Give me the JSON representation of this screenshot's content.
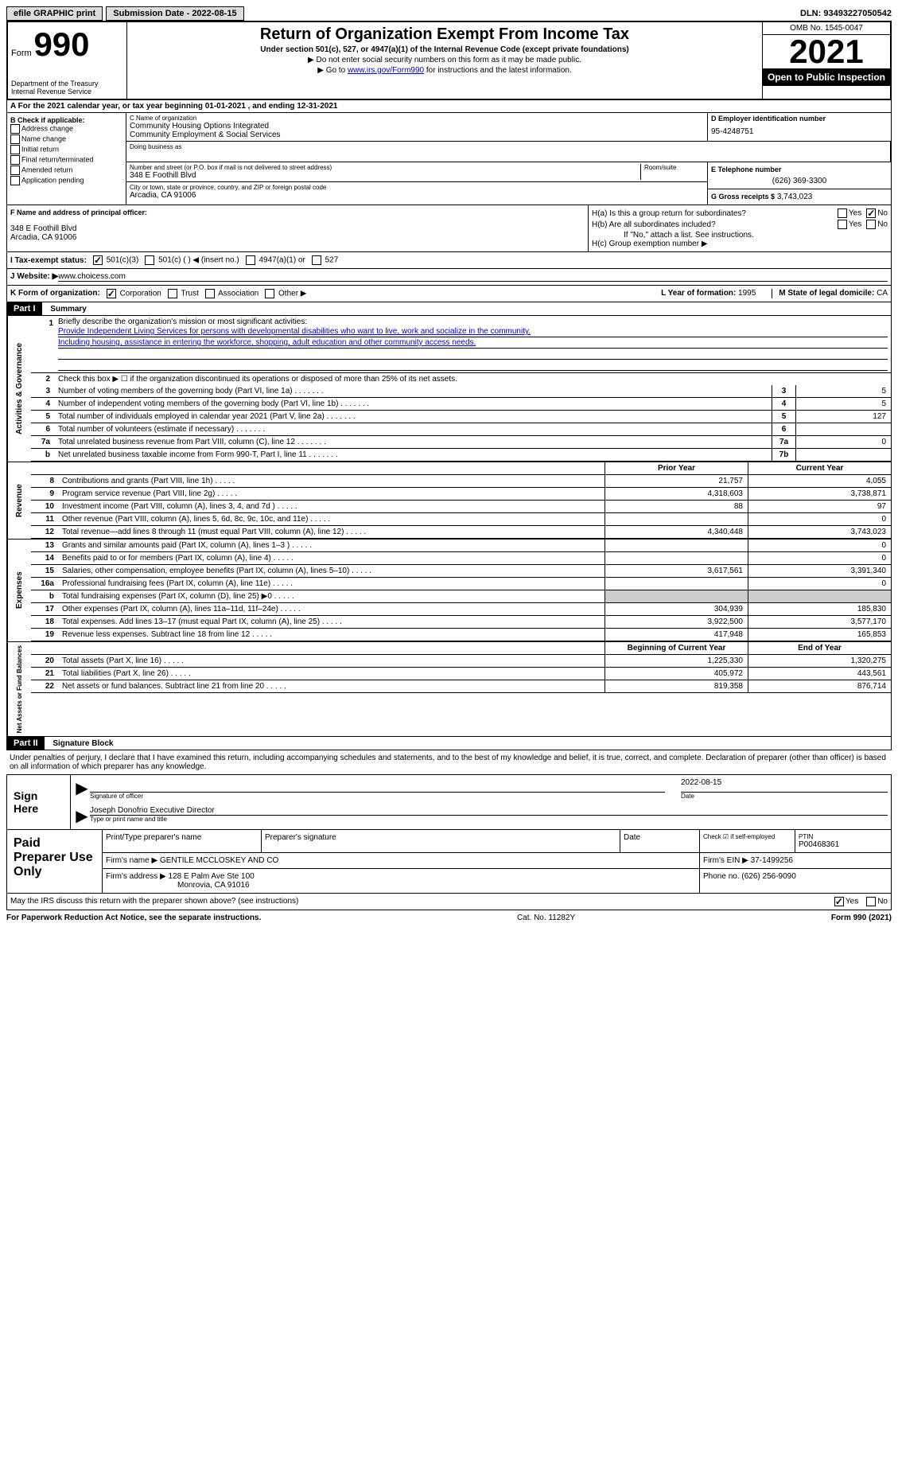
{
  "topbar": {
    "efile": "efile GRAPHIC print",
    "sub_label": "Submission Date - 2022-08-15",
    "dln": "DLN: 93493227050542"
  },
  "header": {
    "form_word": "Form",
    "form_num": "990",
    "dept": "Department of the Treasury Internal Revenue Service",
    "title": "Return of Organization Exempt From Income Tax",
    "sub": "Under section 501(c), 527, or 4947(a)(1) of the Internal Revenue Code (except private foundations)",
    "note1": "▶ Do not enter social security numbers on this form as it may be made public.",
    "note2_pre": "▶ Go to ",
    "note2_link": "www.irs.gov/Form990",
    "note2_post": " for instructions and the latest information.",
    "omb": "OMB No. 1545-0047",
    "year": "2021",
    "inspect": "Open to Public Inspection"
  },
  "row_a": "A For the 2021 calendar year, or tax year beginning 01-01-2021    , and ending 12-31-2021",
  "col_b": {
    "title": "B Check if applicable:",
    "opts": [
      "Address change",
      "Name change",
      "Initial return",
      "Final return/terminated",
      "Amended return",
      "Application pending"
    ]
  },
  "col_c": {
    "name_label": "C Name of organization",
    "name1": "Community Housing Options Integrated",
    "name2": "Community Employment & Social Services",
    "dba_label": "Doing business as",
    "addr_label": "Number and street (or P.O. box if mail is not delivered to street address)",
    "room_label": "Room/suite",
    "addr": "348 E Foothill Blvd",
    "city_label": "City or town, state or province, country, and ZIP or foreign postal code",
    "city": "Arcadia, CA  91006"
  },
  "col_d": {
    "label": "D Employer identification number",
    "val": "95-4248751"
  },
  "col_e": {
    "phone_label": "E Telephone number",
    "phone": "(626) 369-3300",
    "gross_label": "G Gross receipts $",
    "gross": "3,743,023"
  },
  "col_f": {
    "label": "F Name and address of principal officer:",
    "addr1": "348 E Foothill Blvd",
    "addr2": "Arcadia, CA  91006"
  },
  "col_h": {
    "a": "H(a)  Is this a group return for subordinates?",
    "b": "H(b)  Are all subordinates included?",
    "b_note": "If \"No,\" attach a list. See instructions.",
    "c": "H(c)  Group exemption number ▶"
  },
  "row_i": {
    "label": "I  Tax-exempt status:",
    "o1": "501(c)(3)",
    "o2": "501(c) (   ) ◀ (insert no.)",
    "o3": "4947(a)(1) or",
    "o4": "527"
  },
  "row_j": {
    "label": "J  Website: ▶ ",
    "val": "www.choicess.com"
  },
  "row_k": {
    "label": "K Form of organization:",
    "o1": "Corporation",
    "o2": "Trust",
    "o3": "Association",
    "o4": "Other ▶",
    "year_label": "L Year of formation:",
    "year": "1995",
    "state_label": "M State of legal domicile:",
    "state": "CA"
  },
  "part1": {
    "hdr": "Part I",
    "title": "Summary"
  },
  "summary": {
    "mission_label": "Briefly describe the organization's mission or most significant activities:",
    "mission1": "Provide Independent Living Services for persons with developmental disabilities who want to live, work and socialize in the community.",
    "mission2": "Including housing, assistance in entering the workforce, shopping, adult education and other community access needs.",
    "line2": "Check this box ▶ ☐ if the organization discontinued its operations or disposed of more than 25% of its net assets.",
    "rows": [
      {
        "n": "3",
        "t": "Number of voting members of the governing body (Part VI, line 1a)",
        "b": "3",
        "v": "5"
      },
      {
        "n": "4",
        "t": "Number of independent voting members of the governing body (Part VI, line 1b)",
        "b": "4",
        "v": "5"
      },
      {
        "n": "5",
        "t": "Total number of individuals employed in calendar year 2021 (Part V, line 2a)",
        "b": "5",
        "v": "127"
      },
      {
        "n": "6",
        "t": "Total number of volunteers (estimate if necessary)",
        "b": "6",
        "v": ""
      },
      {
        "n": "7a",
        "t": "Total unrelated business revenue from Part VIII, column (C), line 12",
        "b": "7a",
        "v": "0"
      },
      {
        "n": "b",
        "t": "Net unrelated business taxable income from Form 990-T, Part I, line 11",
        "b": "7b",
        "v": ""
      }
    ],
    "col_prior": "Prior Year",
    "col_current": "Current Year",
    "revenue": [
      {
        "n": "8",
        "t": "Contributions and grants (Part VIII, line 1h)",
        "p": "21,757",
        "c": "4,055"
      },
      {
        "n": "9",
        "t": "Program service revenue (Part VIII, line 2g)",
        "p": "4,318,603",
        "c": "3,738,871"
      },
      {
        "n": "10",
        "t": "Investment income (Part VIII, column (A), lines 3, 4, and 7d )",
        "p": "88",
        "c": "97"
      },
      {
        "n": "11",
        "t": "Other revenue (Part VIII, column (A), lines 5, 6d, 8c, 9c, 10c, and 11e)",
        "p": "",
        "c": "0"
      },
      {
        "n": "12",
        "t": "Total revenue—add lines 8 through 11 (must equal Part VIII, column (A), line 12)",
        "p": "4,340,448",
        "c": "3,743,023"
      }
    ],
    "expenses": [
      {
        "n": "13",
        "t": "Grants and similar amounts paid (Part IX, column (A), lines 1–3 )",
        "p": "",
        "c": "0"
      },
      {
        "n": "14",
        "t": "Benefits paid to or for members (Part IX, column (A), line 4)",
        "p": "",
        "c": "0"
      },
      {
        "n": "15",
        "t": "Salaries, other compensation, employee benefits (Part IX, column (A), lines 5–10)",
        "p": "3,617,561",
        "c": "3,391,340"
      },
      {
        "n": "16a",
        "t": "Professional fundraising fees (Part IX, column (A), line 11e)",
        "p": "",
        "c": "0"
      },
      {
        "n": "b",
        "t": "Total fundraising expenses (Part IX, column (D), line 25) ▶0",
        "p": "grey",
        "c": "grey"
      },
      {
        "n": "17",
        "t": "Other expenses (Part IX, column (A), lines 11a–11d, 11f–24e)",
        "p": "304,939",
        "c": "185,830"
      },
      {
        "n": "18",
        "t": "Total expenses. Add lines 13–17 (must equal Part IX, column (A), line 25)",
        "p": "3,922,500",
        "c": "3,577,170"
      },
      {
        "n": "19",
        "t": "Revenue less expenses. Subtract line 18 from line 12",
        "p": "417,948",
        "c": "165,853"
      }
    ],
    "col_begin": "Beginning of Current Year",
    "col_end": "End of Year",
    "netassets": [
      {
        "n": "20",
        "t": "Total assets (Part X, line 16)",
        "p": "1,225,330",
        "c": "1,320,275"
      },
      {
        "n": "21",
        "t": "Total liabilities (Part X, line 26)",
        "p": "405,972",
        "c": "443,561"
      },
      {
        "n": "22",
        "t": "Net assets or fund balances. Subtract line 21 from line 20",
        "p": "819,358",
        "c": "876,714"
      }
    ],
    "side_labels": {
      "gov": "Activities & Governance",
      "rev": "Revenue",
      "exp": "Expenses",
      "net": "Net Assets or Fund Balances"
    }
  },
  "part2": {
    "hdr": "Part II",
    "title": "Signature Block",
    "penalty": "Under penalties of perjury, I declare that I have examined this return, including accompanying schedules and statements, and to the best of my knowledge and belief, it is true, correct, and complete. Declaration of preparer (other than officer) is based on all information of which preparer has any knowledge."
  },
  "sign": {
    "label": "Sign Here",
    "sig_label": "Signature of officer",
    "date": "2022-08-15",
    "date_label": "Date",
    "name": "Joseph Donofrio  Executive Director",
    "name_label": "Type or print name and title"
  },
  "prep": {
    "label": "Paid Preparer Use Only",
    "r1": {
      "c1": "Print/Type preparer's name",
      "c2": "Preparer's signature",
      "c3": "Date",
      "c4_label": "Check ☑ if self-employed",
      "c5_label": "PTIN",
      "c5": "P00468361"
    },
    "r2": {
      "label": "Firm's name    ▶",
      "val": "GENTILE MCCLOSKEY AND CO",
      "ein_label": "Firm's EIN ▶",
      "ein": "37-1499256"
    },
    "r3": {
      "label": "Firm's address ▶",
      "val1": "128 E Palm Ave Ste 100",
      "val2": "Monrovia, CA  91016",
      "phone_label": "Phone no.",
      "phone": "(626) 256-9090"
    }
  },
  "discuss": "May the IRS discuss this return with the preparer shown above? (see instructions)",
  "footer": {
    "left": "For Paperwork Reduction Act Notice, see the separate instructions.",
    "mid": "Cat. No. 11282Y",
    "right": "Form 990 (2021)"
  }
}
